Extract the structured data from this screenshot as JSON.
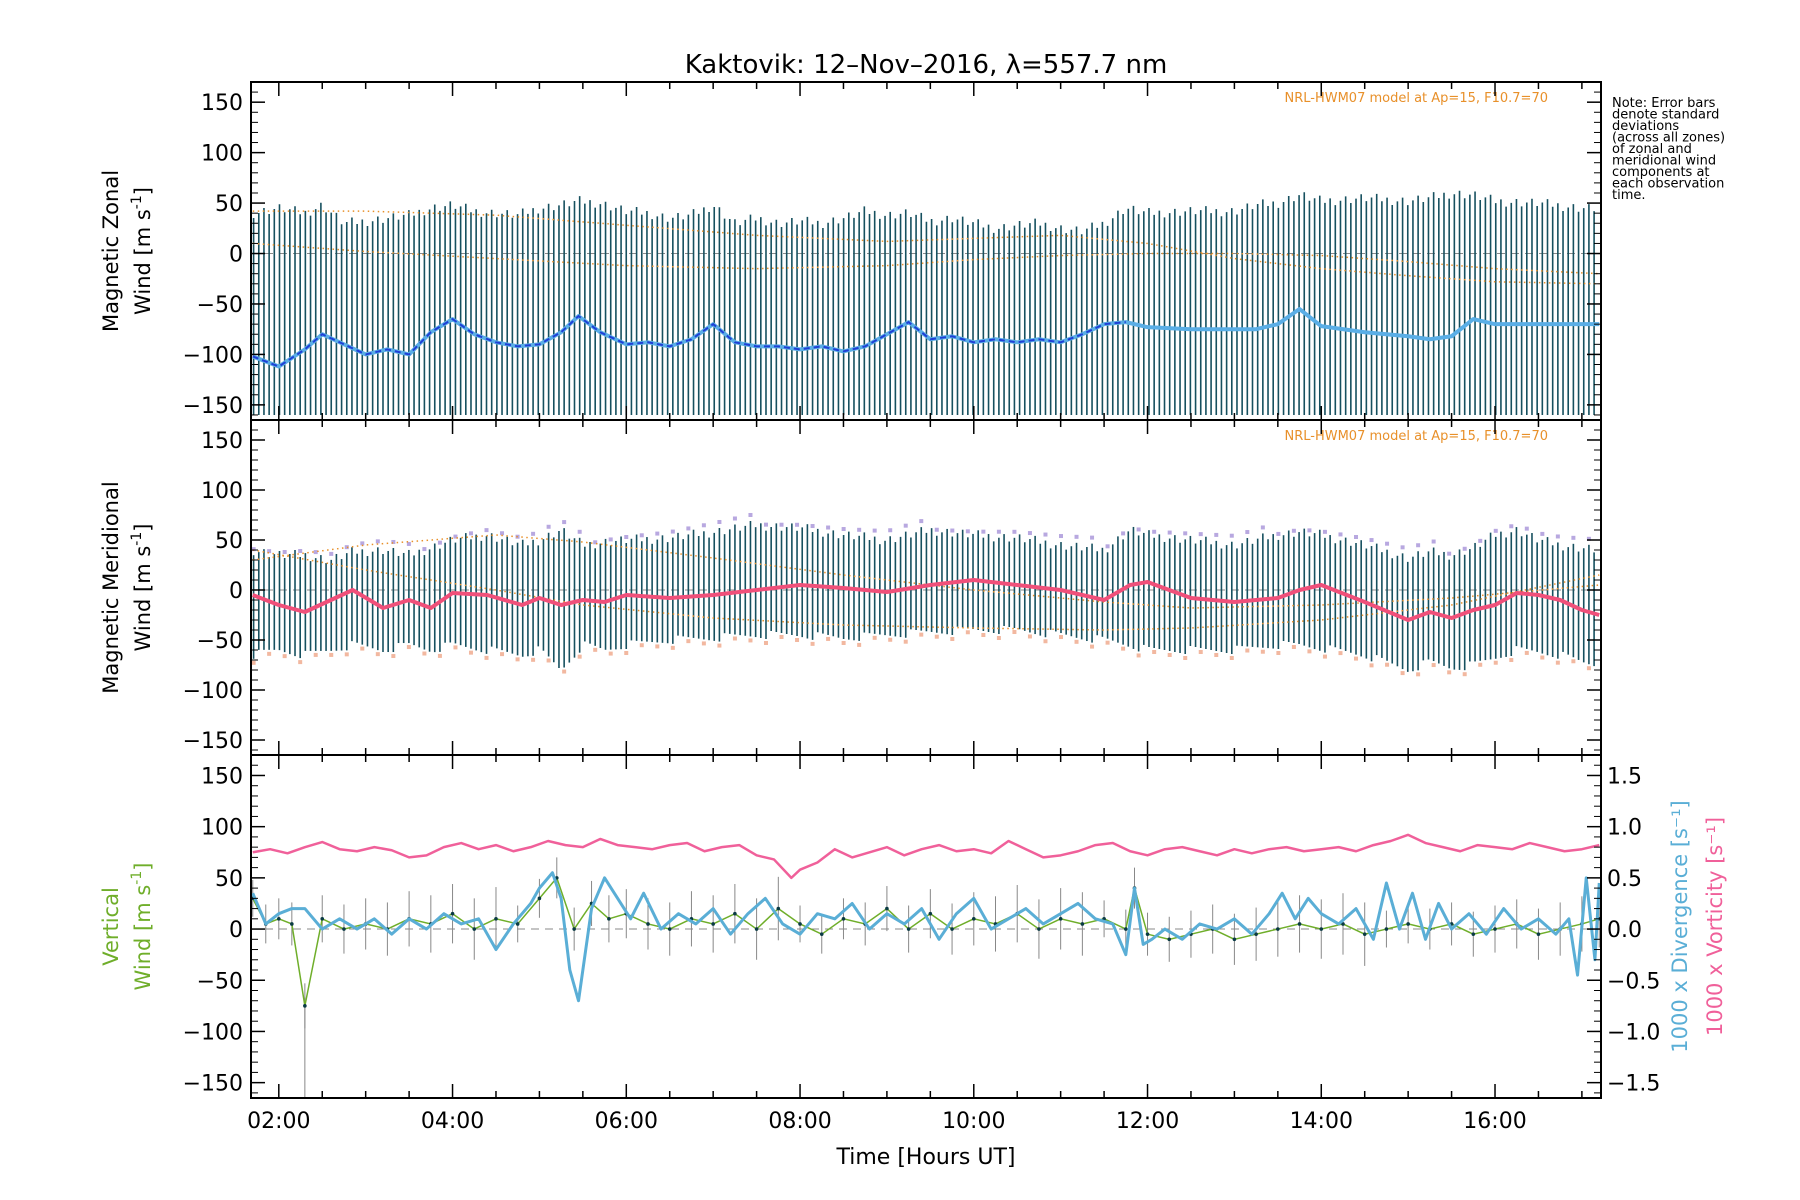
{
  "title": "Kaktovik: 12–Nov–2016, λ=557.7 nm",
  "note": [
    "Note: Error bars",
    "denote standard",
    "deviations",
    "(across all zones)",
    "of zonal and",
    "meridional wind",
    "components at",
    "each observation",
    "time."
  ],
  "model_label": "NRL-HWM07 model at Ap=15, F10.7=70",
  "colors": {
    "zonal_line": "#5aaee6",
    "zonal_line_dark": "#1f3fd6",
    "meridional_line": "#f0507a",
    "error_bar": "#16505f",
    "model": "#e8902a",
    "vertical": "#6fae2a",
    "divergence": "#5aaed6",
    "vorticity": "#f0609a"
  },
  "chart_data": [
    {
      "type": "line",
      "panel": "zonal",
      "ylabel_lines": [
        "Magnetic Zonal",
        "Wind [m s^-1]"
      ],
      "ylim": [
        -165,
        170
      ],
      "yticks": [
        -150,
        -100,
        -50,
        0,
        50,
        100,
        150
      ],
      "xlim": [
        1.68,
        17.22
      ],
      "show_model_label": true,
      "x": [
        1.7,
        2.0,
        2.3,
        2.5,
        2.75,
        3.0,
        3.25,
        3.5,
        3.75,
        4.0,
        4.25,
        4.5,
        4.75,
        5.0,
        5.25,
        5.45,
        5.7,
        6.0,
        6.25,
        6.5,
        6.75,
        7.0,
        7.25,
        7.5,
        7.75,
        8.0,
        8.25,
        8.5,
        8.75,
        9.0,
        9.25,
        9.5,
        9.75,
        10.0,
        10.25,
        10.5,
        10.75,
        11.0,
        11.25,
        11.5,
        11.75,
        12.0,
        12.5,
        13.0,
        13.25,
        13.5,
        13.75,
        14.0,
        14.5,
        15.0,
        15.25,
        15.5,
        15.75,
        16.0,
        16.5,
        17.0,
        17.2
      ],
      "y": [
        -102,
        -112,
        -95,
        -80,
        -90,
        -100,
        -95,
        -100,
        -78,
        -65,
        -80,
        -88,
        -92,
        -90,
        -78,
        -62,
        -78,
        -90,
        -88,
        -92,
        -85,
        -70,
        -88,
        -92,
        -92,
        -95,
        -92,
        -97,
        -92,
        -80,
        -68,
        -85,
        -82,
        -88,
        -85,
        -88,
        -85,
        -88,
        -80,
        -70,
        -68,
        -73,
        -75,
        -75,
        -75,
        -70,
        -55,
        -72,
        -78,
        -82,
        -85,
        -82,
        -65,
        -70,
        -70,
        -70,
        -70
      ],
      "errlow": -160,
      "errhigh": [
        40,
        45,
        40,
        48,
        30,
        32,
        35,
        38,
        45,
        48,
        42,
        40,
        38,
        45,
        48,
        52,
        50,
        42,
        40,
        35,
        38,
        48,
        30,
        35,
        30,
        32,
        30,
        35,
        42,
        38,
        40,
        32,
        35,
        30,
        25,
        28,
        30,
        25,
        22,
        30,
        45,
        40,
        42,
        42,
        48,
        50,
        58,
        52,
        55,
        52,
        55,
        60,
        58,
        52,
        50,
        45,
        45
      ],
      "model1": {
        "x": [
          1.7,
          3.0,
          4.5,
          6.0,
          7.5,
          9.0,
          10.0,
          11.0,
          12.0,
          13.0,
          14.0,
          15.0,
          16.0,
          17.2
        ],
        "y": [
          42,
          42,
          38,
          28,
          18,
          12,
          15,
          18,
          10,
          -5,
          -15,
          -22,
          -28,
          -30
        ]
      },
      "model2": {
        "x": [
          1.7,
          3.0,
          4.5,
          6.0,
          7.5,
          9.0,
          10.0,
          11.0,
          12.0,
          13.0,
          14.0,
          15.0,
          16.0,
          17.2
        ],
        "y": [
          10,
          2,
          -5,
          -12,
          -15,
          -12,
          -6,
          -2,
          0,
          0,
          -2,
          -8,
          -15,
          -20
        ]
      }
    },
    {
      "type": "line",
      "panel": "meridional",
      "ylabel_lines": [
        "Magnetic Meridional",
        "Wind [m s^-1]"
      ],
      "ylim": [
        -165,
        170
      ],
      "yticks": [
        -150,
        -100,
        -50,
        0,
        50,
        100,
        150
      ],
      "xlim": [
        1.68,
        17.22
      ],
      "show_model_label": true,
      "x": [
        1.7,
        2.0,
        2.3,
        2.6,
        2.85,
        3.2,
        3.5,
        3.75,
        4.0,
        4.4,
        4.8,
        5.0,
        5.25,
        5.5,
        5.75,
        6.0,
        6.5,
        7.0,
        7.5,
        8.0,
        8.5,
        9.0,
        9.5,
        10.0,
        10.5,
        11.0,
        11.5,
        11.8,
        12.0,
        12.5,
        13.0,
        13.5,
        13.75,
        14.0,
        14.5,
        15.0,
        15.25,
        15.5,
        15.75,
        16.0,
        16.25,
        16.5,
        16.75,
        17.0,
        17.2
      ],
      "y": [
        -5,
        -15,
        -22,
        -10,
        0,
        -18,
        -10,
        -18,
        -3,
        -5,
        -15,
        -8,
        -15,
        -10,
        -12,
        -5,
        -8,
        -5,
        0,
        5,
        2,
        -2,
        5,
        10,
        5,
        0,
        -10,
        5,
        8,
        -8,
        -12,
        -8,
        0,
        5,
        -12,
        -30,
        -22,
        -28,
        -20,
        -15,
        -3,
        -5,
        -10,
        -20,
        -25
      ],
      "errlow": [
        -65,
        -60,
        -65,
        -60,
        -55,
        -60,
        -55,
        -60,
        -55,
        -60,
        -65,
        -60,
        -80,
        -55,
        -60,
        -55,
        -50,
        -48,
        -45,
        -45,
        -48,
        -45,
        -42,
        -40,
        -40,
        -45,
        -50,
        -55,
        -60,
        -60,
        -60,
        -55,
        -55,
        -58,
        -65,
        -80,
        -72,
        -78,
        -75,
        -68,
        -60,
        -62,
        -65,
        -72,
        -75
      ],
      "errhigh": [
        40,
        35,
        35,
        30,
        38,
        40,
        35,
        42,
        50,
        55,
        45,
        50,
        60,
        45,
        48,
        50,
        52,
        58,
        65,
        62,
        55,
        50,
        60,
        55,
        52,
        45,
        40,
        60,
        55,
        50,
        45,
        55,
        58,
        55,
        45,
        32,
        38,
        35,
        42,
        55,
        60,
        50,
        45,
        42,
        40
      ],
      "model1": {
        "x": [
          1.7,
          3.0,
          4.5,
          5.5,
          7.0,
          8.5,
          10.0,
          11.5,
          12.5,
          14.0,
          15.5,
          17.2
        ],
        "y": [
          30,
          45,
          55,
          48,
          32,
          15,
          0,
          -12,
          -18,
          -15,
          -8,
          5
        ]
      },
      "model2": {
        "x": [
          1.7,
          3.0,
          4.5,
          5.5,
          7.0,
          8.5,
          10.0,
          11.5,
          12.5,
          14.0,
          15.5,
          17.2
        ],
        "y": [
          40,
          20,
          0,
          -15,
          -28,
          -35,
          -38,
          -40,
          -38,
          -30,
          -15,
          15
        ]
      }
    },
    {
      "type": "line",
      "panel": "vertical",
      "ylabel_lines": [
        "Vertical",
        "Wind [m s^-1]"
      ],
      "y2label_div": "1000 x Divergence [s^-1]",
      "y2label_vort": "1000 x Vorticity [s^-1]",
      "ylim": [
        -165,
        170
      ],
      "yticks": [
        -150,
        -100,
        -50,
        0,
        50,
        100,
        150
      ],
      "y2lim": [
        -1.65,
        1.7
      ],
      "y2ticks": [
        -1.5,
        -1.0,
        -0.5,
        0.0,
        0.5,
        1.0,
        1.5
      ],
      "y2ticklabels": [
        "−1.5",
        "−1.0",
        "−0.5",
        "0.0",
        "0.5",
        "1.0",
        "1.5"
      ],
      "xlim": [
        1.68,
        17.22
      ],
      "xticks": [
        2,
        4,
        6,
        8,
        10,
        12,
        14,
        16
      ],
      "xticklabels": [
        "02:00",
        "04:00",
        "06:00",
        "08:00",
        "10:00",
        "12:00",
        "14:00",
        "16:00"
      ],
      "xlabel": "Time [Hours UT]",
      "vertical_wind": {
        "x": [
          1.7,
          1.85,
          2.0,
          2.15,
          2.3,
          2.5,
          2.75,
          3.0,
          3.25,
          3.5,
          3.75,
          4.0,
          4.25,
          4.5,
          4.75,
          5.0,
          5.2,
          5.4,
          5.6,
          5.8,
          6.0,
          6.25,
          6.5,
          6.75,
          7.0,
          7.25,
          7.5,
          7.75,
          8.0,
          8.25,
          8.5,
          8.75,
          9.0,
          9.25,
          9.5,
          9.75,
          10.0,
          10.25,
          10.5,
          10.75,
          11.0,
          11.25,
          11.5,
          11.75,
          11.85,
          12.0,
          12.25,
          12.5,
          12.75,
          13.0,
          13.25,
          13.5,
          13.75,
          14.0,
          14.25,
          14.5,
          14.75,
          15.0,
          15.25,
          15.5,
          15.75,
          16.0,
          16.25,
          16.5,
          16.75,
          17.0,
          17.2
        ],
        "y": [
          30,
          5,
          10,
          5,
          -75,
          10,
          0,
          5,
          0,
          10,
          5,
          15,
          0,
          10,
          5,
          30,
          50,
          0,
          25,
          10,
          15,
          5,
          0,
          10,
          5,
          15,
          0,
          20,
          5,
          -5,
          10,
          5,
          20,
          0,
          15,
          0,
          10,
          5,
          15,
          0,
          10,
          5,
          10,
          0,
          40,
          -5,
          -10,
          -5,
          0,
          -10,
          -5,
          0,
          5,
          0,
          5,
          -5,
          0,
          5,
          0,
          5,
          -5,
          0,
          5,
          -5,
          0,
          5,
          10
        ]
      },
      "divergence": {
        "x": [
          1.7,
          1.85,
          2.0,
          2.15,
          2.3,
          2.5,
          2.7,
          2.9,
          3.1,
          3.3,
          3.5,
          3.7,
          3.9,
          4.1,
          4.3,
          4.5,
          4.7,
          4.9,
          5.0,
          5.15,
          5.25,
          5.35,
          5.45,
          5.6,
          5.75,
          5.9,
          6.05,
          6.2,
          6.4,
          6.6,
          6.8,
          7.0,
          7.2,
          7.4,
          7.6,
          7.8,
          8.0,
          8.2,
          8.4,
          8.6,
          8.8,
          9.0,
          9.2,
          9.4,
          9.6,
          9.8,
          10.0,
          10.2,
          10.4,
          10.6,
          10.8,
          11.0,
          11.2,
          11.4,
          11.6,
          11.75,
          11.85,
          11.95,
          12.05,
          12.2,
          12.4,
          12.6,
          12.8,
          13.0,
          13.2,
          13.4,
          13.55,
          13.7,
          13.85,
          14.0,
          14.2,
          14.4,
          14.6,
          14.75,
          14.9,
          15.05,
          15.2,
          15.35,
          15.5,
          15.7,
          15.9,
          16.1,
          16.3,
          16.5,
          16.7,
          16.85,
          16.95,
          17.05,
          17.15,
          17.2
        ],
        "y": [
          0.35,
          0.05,
          0.15,
          0.2,
          0.2,
          0.0,
          0.1,
          0.0,
          0.1,
          -0.05,
          0.1,
          0.0,
          0.15,
          0.05,
          0.1,
          -0.2,
          0.05,
          0.25,
          0.4,
          0.55,
          0.3,
          -0.4,
          -0.7,
          0.2,
          0.5,
          0.3,
          0.1,
          0.35,
          0.0,
          0.15,
          0.05,
          0.2,
          -0.05,
          0.15,
          0.3,
          0.05,
          -0.05,
          0.15,
          0.1,
          0.25,
          0.0,
          0.15,
          0.05,
          0.2,
          -0.1,
          0.15,
          0.3,
          0.0,
          0.1,
          0.2,
          0.05,
          0.15,
          0.25,
          0.1,
          0.05,
          -0.25,
          0.4,
          -0.15,
          -0.1,
          0.0,
          -0.1,
          0.05,
          0.0,
          0.1,
          -0.05,
          0.15,
          0.35,
          0.1,
          0.3,
          0.15,
          0.05,
          0.2,
          -0.1,
          0.45,
          0.0,
          0.35,
          -0.1,
          0.25,
          0.0,
          0.15,
          -0.05,
          0.2,
          0.0,
          0.1,
          -0.05,
          0.1,
          -0.45,
          0.5,
          -0.3,
          0.45
        ]
      },
      "vorticity": {
        "x": [
          1.7,
          1.9,
          2.1,
          2.3,
          2.5,
          2.7,
          2.9,
          3.1,
          3.3,
          3.5,
          3.7,
          3.9,
          4.1,
          4.3,
          4.5,
          4.7,
          4.9,
          5.1,
          5.3,
          5.5,
          5.7,
          5.9,
          6.1,
          6.3,
          6.5,
          6.7,
          6.9,
          7.1,
          7.3,
          7.5,
          7.7,
          7.9,
          8.0,
          8.2,
          8.4,
          8.6,
          8.8,
          9.0,
          9.2,
          9.4,
          9.6,
          9.8,
          10.0,
          10.2,
          10.4,
          10.6,
          10.8,
          11.0,
          11.2,
          11.4,
          11.6,
          11.8,
          12.0,
          12.2,
          12.4,
          12.6,
          12.8,
          13.0,
          13.2,
          13.4,
          13.6,
          13.8,
          14.0,
          14.2,
          14.4,
          14.6,
          14.8,
          15.0,
          15.2,
          15.4,
          15.6,
          15.8,
          16.0,
          16.2,
          16.4,
          16.6,
          16.8,
          17.0,
          17.2
        ],
        "y": [
          0.75,
          0.78,
          0.74,
          0.8,
          0.85,
          0.78,
          0.76,
          0.8,
          0.77,
          0.7,
          0.72,
          0.8,
          0.84,
          0.78,
          0.82,
          0.76,
          0.8,
          0.86,
          0.82,
          0.8,
          0.88,
          0.82,
          0.8,
          0.78,
          0.82,
          0.84,
          0.76,
          0.8,
          0.82,
          0.72,
          0.68,
          0.5,
          0.58,
          0.65,
          0.78,
          0.7,
          0.75,
          0.8,
          0.72,
          0.78,
          0.82,
          0.76,
          0.78,
          0.74,
          0.86,
          0.78,
          0.7,
          0.72,
          0.76,
          0.82,
          0.84,
          0.76,
          0.72,
          0.78,
          0.8,
          0.76,
          0.72,
          0.78,
          0.74,
          0.78,
          0.8,
          0.76,
          0.78,
          0.8,
          0.76,
          0.82,
          0.86,
          0.92,
          0.84,
          0.8,
          0.76,
          0.82,
          0.8,
          0.78,
          0.84,
          0.8,
          0.76,
          0.78,
          0.82
        ]
      }
    }
  ]
}
